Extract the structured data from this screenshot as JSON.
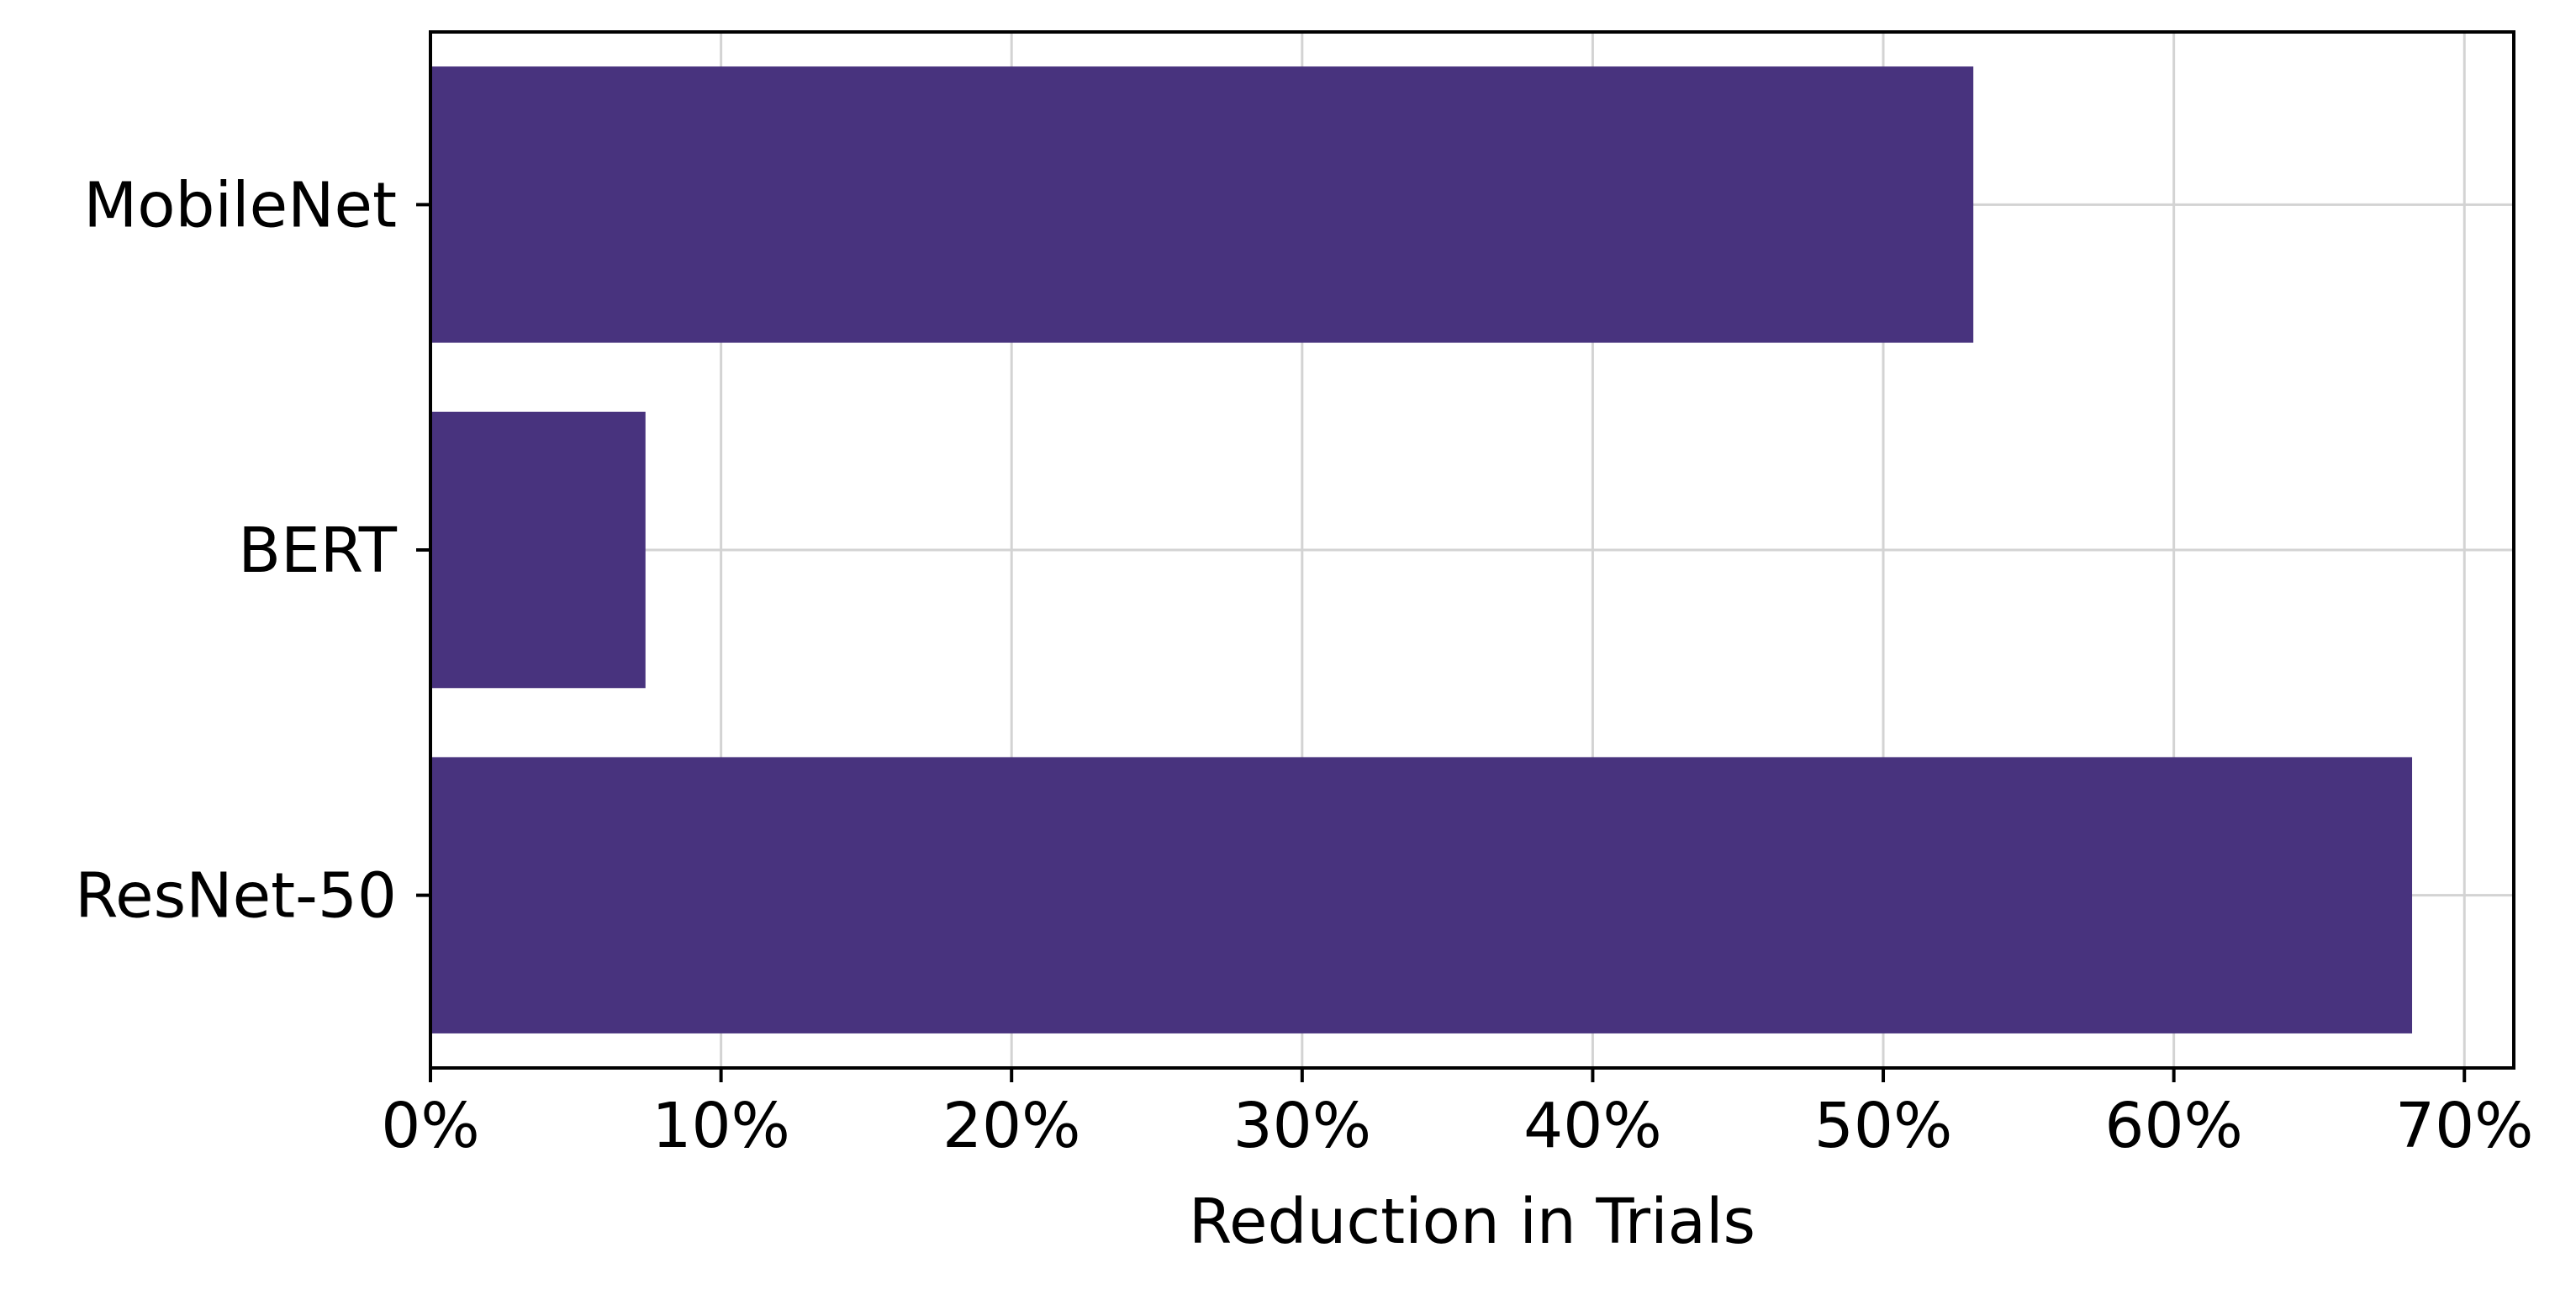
{
  "chart_data": {
    "type": "bar",
    "orientation": "horizontal",
    "categories": [
      "MobileNet",
      "BERT",
      "ResNet-50"
    ],
    "values": [
      53.1,
      7.4,
      68.2
    ],
    "xlabel": "Reduction in Trials",
    "ylabel": "",
    "xlim": [
      0,
      71.7
    ],
    "x_ticks": [
      0,
      10,
      20,
      30,
      40,
      50,
      60,
      70
    ],
    "x_tick_labels": [
      "0%",
      "10%",
      "20%",
      "30%",
      "40%",
      "50%",
      "60%",
      "70%"
    ],
    "grid": true,
    "legend": "none",
    "bar_color": "#48337e",
    "grid_color": "#d3d3d3"
  }
}
